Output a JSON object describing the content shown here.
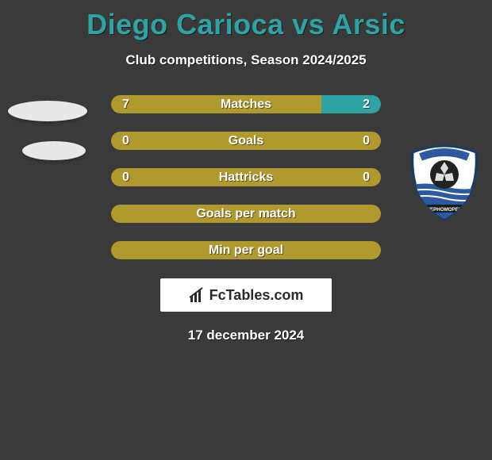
{
  "title": "Diego Carioca vs Arsic",
  "subtitle": "Club competitions, Season 2024/2025",
  "date": "17 december 2024",
  "logo_text": "FcTables.com",
  "colors": {
    "background": "#3a3a3a",
    "title": "#2da3a3",
    "bar_left": "#b09a2e",
    "bar_right": "#2da3a3",
    "text": "#ffffff"
  },
  "bars": [
    {
      "label": "Matches",
      "left_value": "7",
      "right_value": "2",
      "left_pct": 77.8,
      "right_pct": 22.2,
      "left_color": "#b09a2e",
      "right_color": "#2da3a3"
    },
    {
      "label": "Goals",
      "left_value": "0",
      "right_value": "0",
      "left_pct": 50,
      "right_pct": 50,
      "left_color": "#b09a2e",
      "right_color": "#b09a2e"
    },
    {
      "label": "Hattricks",
      "left_value": "0",
      "right_value": "0",
      "left_pct": 50,
      "right_pct": 50,
      "left_color": "#b09a2e",
      "right_color": "#b09a2e"
    },
    {
      "label": "Goals per match",
      "left_value": "",
      "right_value": "",
      "left_pct": 100,
      "right_pct": 0,
      "left_color": "#b09a2e",
      "right_color": "#b09a2e"
    },
    {
      "label": "Min per goal",
      "left_value": "",
      "right_value": "",
      "left_pct": 100,
      "right_pct": 0,
      "left_color": "#b09a2e",
      "right_color": "#b09a2e"
    }
  ],
  "right_club_badge": {
    "name": "Chernomorets",
    "primary": "#2b5aa0",
    "secondary": "#ffffff",
    "accent": "#1a3a6a"
  }
}
